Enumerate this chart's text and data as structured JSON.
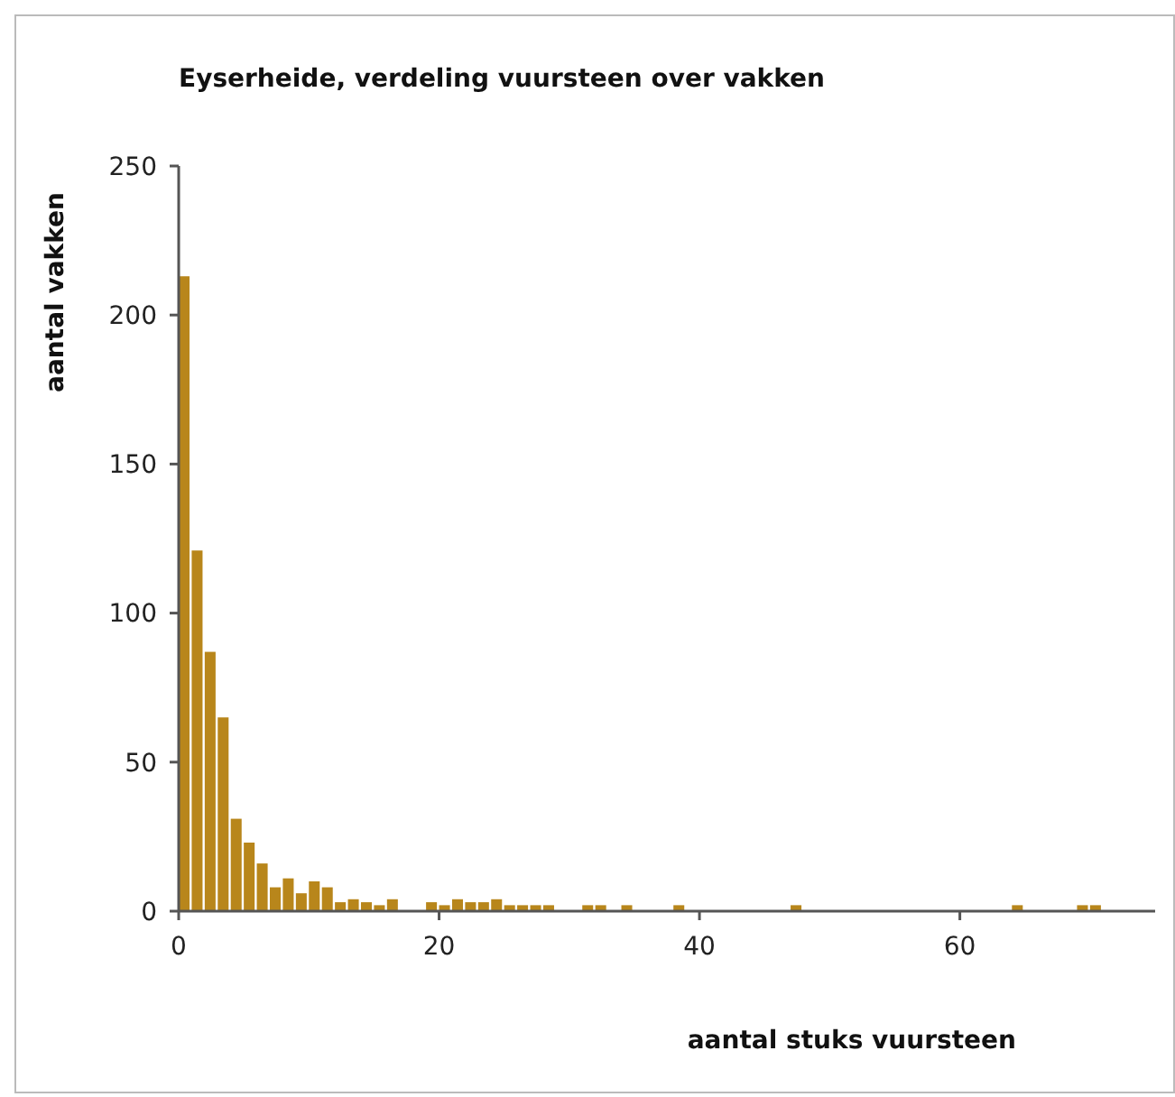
{
  "chart_data": {
    "type": "histogram",
    "title": "Eyserheide, verdeling vuursteen over vakken",
    "xlabel": "aantal stuks vuursteen",
    "ylabel": "aantal vakken",
    "color": "#b8861b",
    "bins": [
      0,
      1,
      2,
      3,
      4,
      5,
      6,
      7,
      8,
      9,
      10,
      11,
      12,
      13,
      14,
      15,
      16,
      17,
      18,
      19,
      20,
      21,
      22,
      23,
      24,
      25,
      26,
      27,
      28,
      29,
      30,
      31,
      32,
      33,
      34,
      35,
      36,
      37,
      38,
      39,
      40,
      41,
      42,
      43,
      44,
      45,
      46,
      47,
      48,
      49,
      50,
      51,
      52,
      53,
      54,
      55,
      56,
      57,
      58,
      59,
      60,
      61,
      62,
      63,
      64,
      65,
      66,
      67,
      68,
      69,
      70,
      71,
      72,
      73,
      74,
      75
    ],
    "values": [
      213,
      121,
      87,
      65,
      31,
      23,
      16,
      8,
      11,
      6,
      10,
      8,
      3,
      4,
      3,
      2,
      4,
      0,
      0,
      3,
      2,
      4,
      3,
      3,
      4,
      2,
      2,
      2,
      2,
      0,
      0,
      2,
      2,
      0,
      2,
      0,
      0,
      0,
      2,
      0,
      0,
      0,
      0,
      0,
      0,
      0,
      0,
      2,
      0,
      0,
      0,
      0,
      0,
      0,
      0,
      0,
      0,
      0,
      0,
      0,
      0,
      0,
      0,
      0,
      2,
      0,
      0,
      0,
      0,
      2,
      2,
      0,
      0,
      0,
      0
    ],
    "xlim": [
      0,
      75
    ],
    "xticks": [
      0,
      20,
      40,
      60
    ],
    "ylim": [
      0,
      250
    ],
    "yticks": [
      0,
      50,
      100,
      150,
      200,
      250
    ],
    "grid": false
  }
}
